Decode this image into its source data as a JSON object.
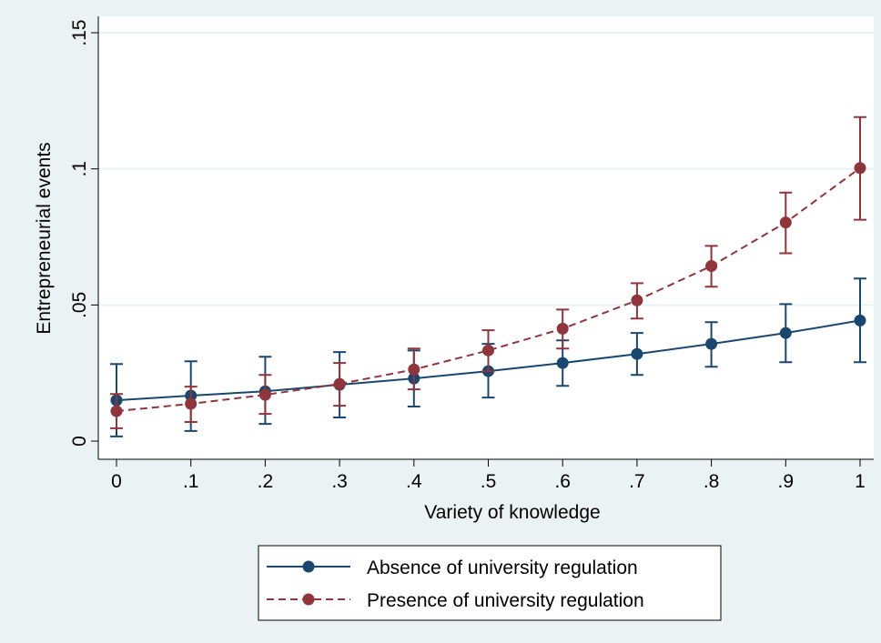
{
  "chart_data": {
    "type": "line",
    "x_label": "Variety of knowledge",
    "y_label": "Entrepreneurial events",
    "x": [
      0,
      0.1,
      0.2,
      0.3,
      0.4,
      0.5,
      0.6,
      0.7,
      0.8,
      0.9,
      1
    ],
    "xlim": [
      0,
      1
    ],
    "xticks": [
      0,
      {
        "value": 0.1,
        "label": ".1"
      },
      {
        "value": 0.2,
        "label": ".2"
      },
      {
        "value": 0.3,
        "label": ".3"
      },
      {
        "value": 0.4,
        "label": ".4"
      },
      {
        "value": 0.5,
        "label": ".5"
      },
      {
        "value": 0.6,
        "label": ".6"
      },
      {
        "value": 0.7,
        "label": ".7"
      },
      {
        "value": 0.8,
        "label": ".8"
      },
      {
        "value": 0.9,
        "label": ".9"
      },
      1
    ],
    "ylim": [
      0,
      0.15
    ],
    "yticks": [
      0,
      {
        "value": 0.05,
        "label": ".05"
      },
      {
        "value": 0.1,
        "label": ".1"
      },
      {
        "value": 0.15,
        "label": ".15"
      }
    ],
    "grid": true,
    "legend": "bottom",
    "series": [
      {
        "name": "Absence of university regulation",
        "color": "#1a476f",
        "dashed": false,
        "values": [
          0.015,
          0.0167,
          0.0183,
          0.0207,
          0.023,
          0.0257,
          0.0287,
          0.032,
          0.0357,
          0.0397,
          0.0443
        ],
        "ci_low": [
          0.0017,
          0.0037,
          0.0063,
          0.0087,
          0.0127,
          0.016,
          0.0203,
          0.0243,
          0.0273,
          0.029,
          0.029
        ],
        "ci_high": [
          0.0283,
          0.0293,
          0.031,
          0.0327,
          0.0333,
          0.0357,
          0.037,
          0.0397,
          0.0437,
          0.0503,
          0.0597
        ]
      },
      {
        "name": "Presence of university regulation",
        "color": "#90353b",
        "dashed": true,
        "values": [
          0.011,
          0.0137,
          0.017,
          0.021,
          0.0263,
          0.0333,
          0.0413,
          0.0517,
          0.0643,
          0.0803,
          0.1003
        ],
        "ci_low": [
          0.0047,
          0.007,
          0.01,
          0.013,
          0.019,
          0.0257,
          0.034,
          0.045,
          0.0567,
          0.069,
          0.0813
        ],
        "ci_high": [
          0.0173,
          0.02,
          0.0243,
          0.0287,
          0.034,
          0.0407,
          0.0483,
          0.058,
          0.0717,
          0.0913,
          0.119
        ]
      }
    ]
  }
}
